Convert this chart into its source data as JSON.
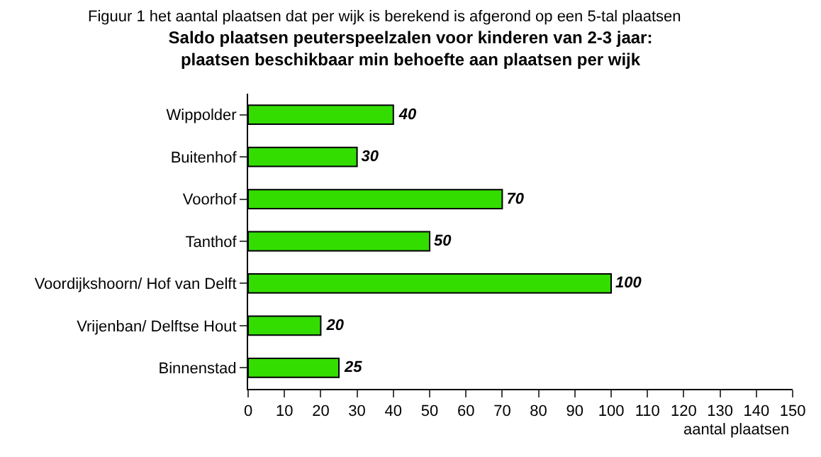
{
  "chart_data": {
    "type": "bar",
    "orientation": "horizontal",
    "title": "Saldo plaatsen peuterspeelzalen voor kinderen van 2-3 jaar:\nplaatsen beschikbaar min behoefte aan plaatsen per wijk",
    "xlabel": "aantal plaatsen",
    "annotations": [
      "Figuur 1 het aantal plaatsen dat per wijk is berekend is afgerond op een 5-tal plaatsen"
    ],
    "categories": [
      "Wippolder",
      "Buitenhof",
      "Voorhof",
      "Tanthof",
      "Voordijkshoorn/ Hof van Delft",
      "Vrijenban/ Delftse Hout",
      "Binnenstad"
    ],
    "values": [
      40,
      30,
      70,
      50,
      100,
      20,
      25
    ],
    "color": "#33dd00",
    "xlim": [
      0,
      150
    ],
    "xticks": [
      0,
      10,
      20,
      30,
      40,
      50,
      60,
      70,
      80,
      90,
      100,
      110,
      120,
      130,
      140,
      150
    ],
    "data_labels": true
  }
}
